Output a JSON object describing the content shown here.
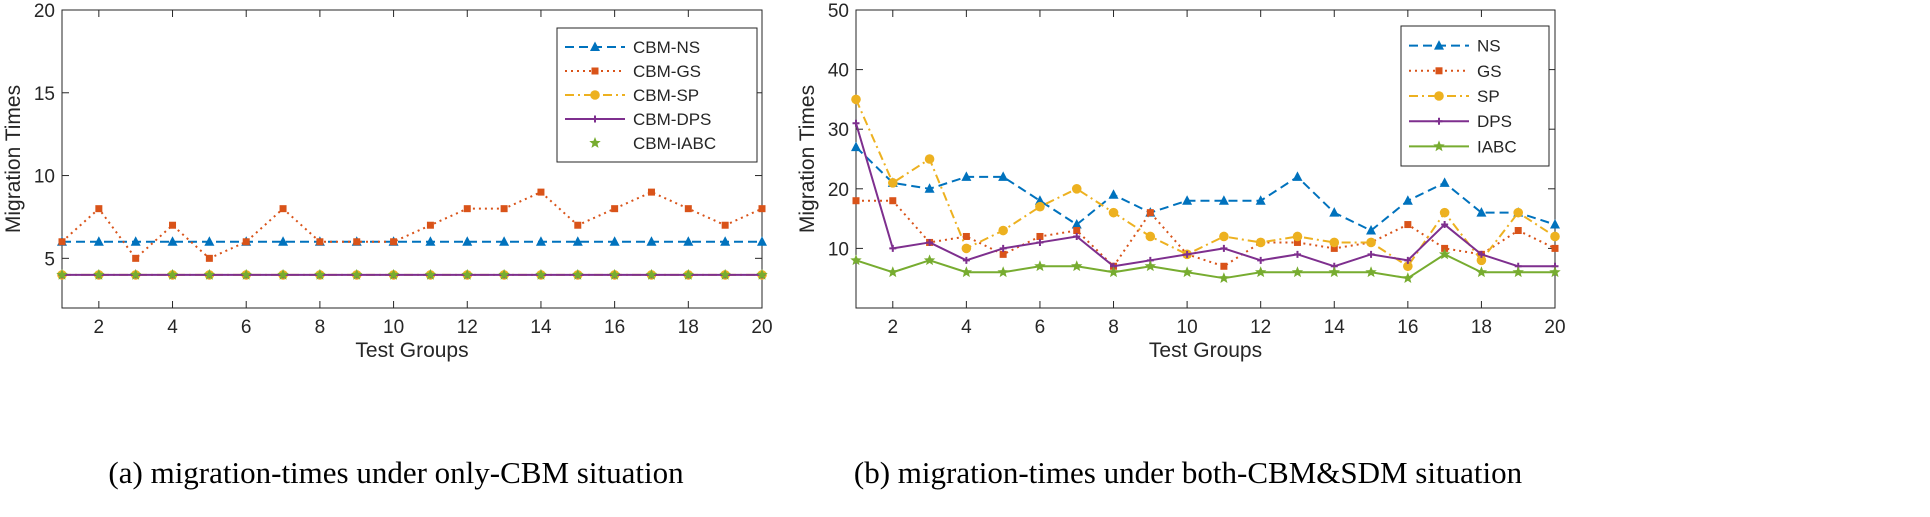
{
  "captions": {
    "a": "(a) migration-times under only-CBM situation",
    "b": "(b) migration-times under both-CBM&SDM situation"
  },
  "colors": {
    "blue": "#0072BD",
    "red": "#D95319",
    "yellow": "#EDB120",
    "purple": "#7E2F8E",
    "green": "#77AC30"
  },
  "chart_data": [
    {
      "type": "line",
      "title": "",
      "xlabel": "Test Groups",
      "ylabel": "Migration Times",
      "xlim": [
        1,
        20
      ],
      "ylim": [
        2,
        20
      ],
      "xticks": [
        2,
        4,
        6,
        8,
        10,
        12,
        14,
        16,
        18,
        20
      ],
      "yticks": [
        5,
        10,
        15,
        20
      ],
      "legend_position": "top-right",
      "x": [
        1,
        2,
        3,
        4,
        5,
        6,
        7,
        8,
        9,
        10,
        11,
        12,
        13,
        14,
        15,
        16,
        17,
        18,
        19,
        20
      ],
      "series": [
        {
          "name": "CBM-NS",
          "color": "blue",
          "dash": "dashed",
          "marker": "triangle",
          "line": true,
          "values": [
            6,
            6,
            6,
            6,
            6,
            6,
            6,
            6,
            6,
            6,
            6,
            6,
            6,
            6,
            6,
            6,
            6,
            6,
            6,
            6
          ]
        },
        {
          "name": "CBM-GS",
          "color": "red",
          "dash": "dotted",
          "marker": "square",
          "line": true,
          "values": [
            6,
            8,
            5,
            7,
            5,
            6,
            8,
            6,
            6,
            6,
            7,
            8,
            8,
            9,
            7,
            8,
            9,
            8,
            7,
            8
          ]
        },
        {
          "name": "CBM-SP",
          "color": "yellow",
          "dash": "dashdot",
          "marker": "circle",
          "line": true,
          "values": [
            4,
            4,
            4,
            4,
            4,
            4,
            4,
            4,
            4,
            4,
            4,
            4,
            4,
            4,
            4,
            4,
            4,
            4,
            4,
            4
          ]
        },
        {
          "name": "CBM-DPS",
          "color": "purple",
          "dash": "solid",
          "marker": "plus",
          "line": true,
          "values": [
            4,
            4,
            4,
            4,
            4,
            4,
            4,
            4,
            4,
            4,
            4,
            4,
            4,
            4,
            4,
            4,
            4,
            4,
            4,
            4
          ]
        },
        {
          "name": "CBM-IABC",
          "color": "green",
          "dash": "solid",
          "marker": "star",
          "line": false,
          "values": [
            4,
            4,
            4,
            4,
            4,
            4,
            4,
            4,
            4,
            4,
            4,
            4,
            4,
            4,
            4,
            4,
            4,
            4,
            4,
            4
          ]
        }
      ]
    },
    {
      "type": "line",
      "title": "",
      "xlabel": "Test Groups",
      "ylabel": "Migration Times",
      "xlim": [
        1,
        20
      ],
      "ylim": [
        0,
        50
      ],
      "xticks": [
        2,
        4,
        6,
        8,
        10,
        12,
        14,
        16,
        18,
        20
      ],
      "yticks": [
        10,
        20,
        30,
        40,
        50
      ],
      "legend_position": "top-right",
      "x": [
        1,
        2,
        3,
        4,
        5,
        6,
        7,
        8,
        9,
        10,
        11,
        12,
        13,
        14,
        15,
        16,
        17,
        18,
        19,
        20
      ],
      "series": [
        {
          "name": "NS",
          "color": "blue",
          "dash": "dashed",
          "marker": "triangle",
          "line": true,
          "values": [
            27,
            21,
            20,
            22,
            22,
            18,
            14,
            19,
            16,
            18,
            18,
            18,
            22,
            16,
            13,
            18,
            21,
            16,
            16,
            14
          ]
        },
        {
          "name": "GS",
          "color": "red",
          "dash": "dotted",
          "marker": "square",
          "line": true,
          "values": [
            18,
            18,
            11,
            12,
            9,
            12,
            13,
            7,
            16,
            9,
            7,
            11,
            11,
            10,
            11,
            14,
            10,
            9,
            13,
            10
          ]
        },
        {
          "name": "SP",
          "color": "yellow",
          "dash": "dashdot",
          "marker": "circle",
          "line": true,
          "values": [
            35,
            21,
            25,
            10,
            13,
            17,
            20,
            16,
            12,
            9,
            12,
            11,
            12,
            11,
            11,
            7,
            16,
            8,
            16,
            12
          ]
        },
        {
          "name": "DPS",
          "color": "purple",
          "dash": "solid",
          "marker": "plus",
          "line": true,
          "values": [
            31,
            10,
            11,
            8,
            10,
            11,
            12,
            7,
            8,
            9,
            10,
            8,
            9,
            7,
            9,
            8,
            14,
            9,
            7,
            7
          ]
        },
        {
          "name": "IABC",
          "color": "green",
          "dash": "solid",
          "marker": "star",
          "line": true,
          "values": [
            8,
            6,
            8,
            6,
            6,
            7,
            7,
            6,
            7,
            6,
            5,
            6,
            6,
            6,
            6,
            5,
            9,
            6,
            6,
            6
          ]
        }
      ]
    }
  ]
}
